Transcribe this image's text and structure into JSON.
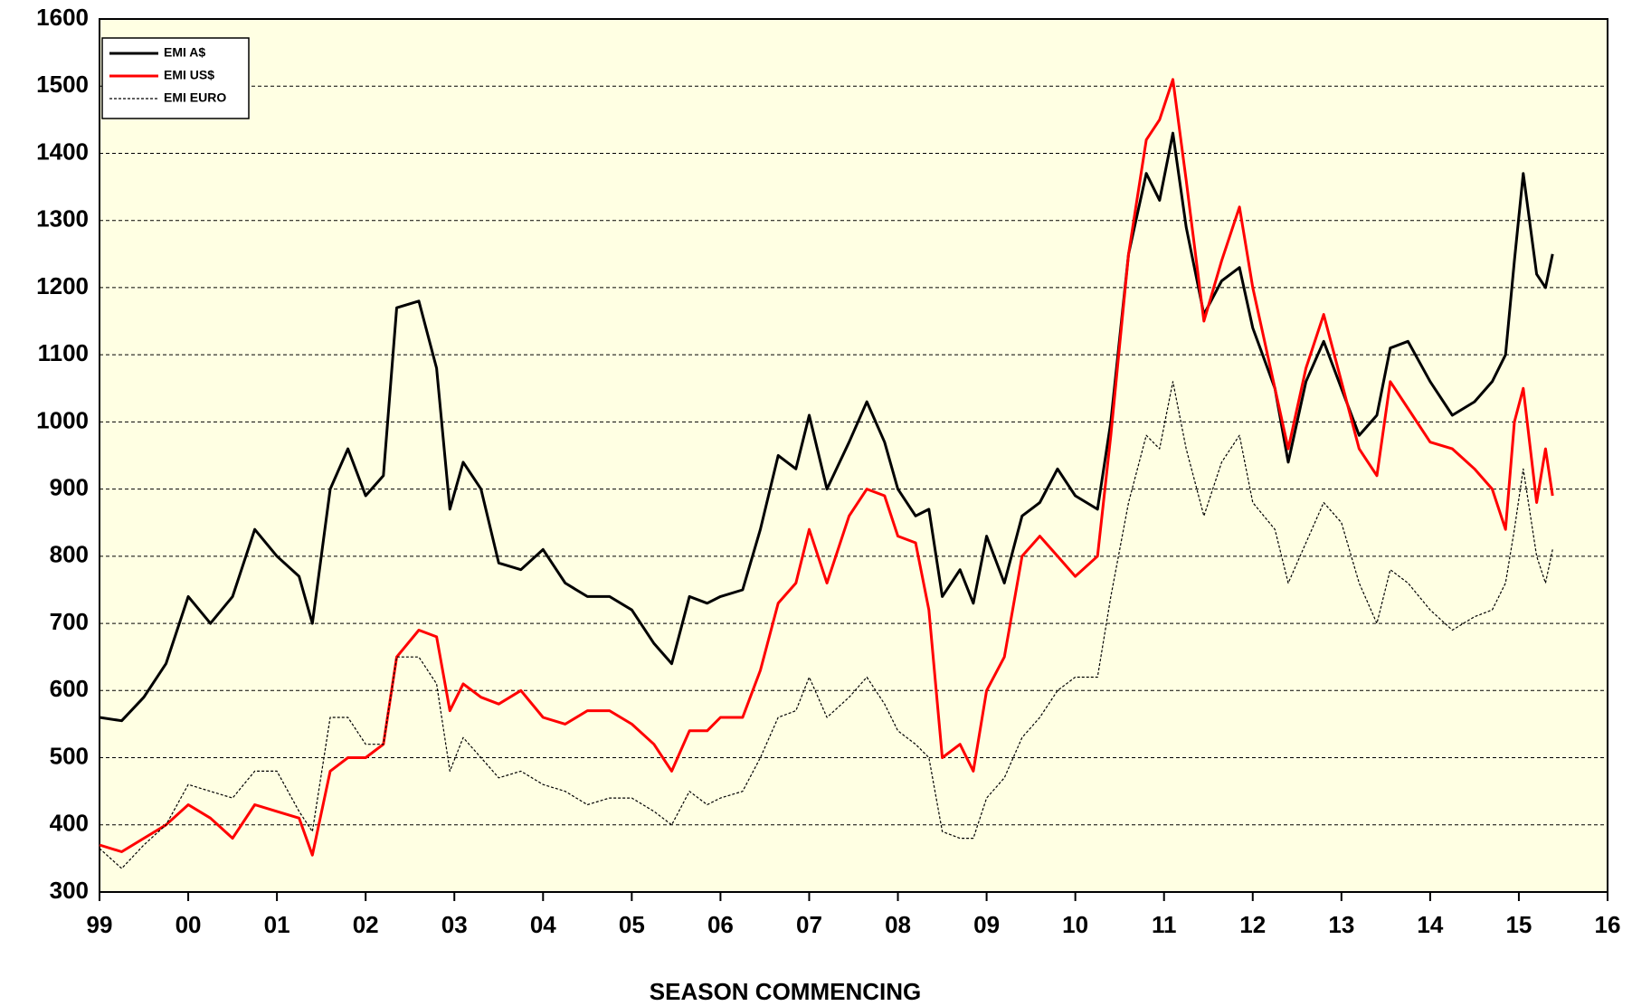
{
  "chart_data": {
    "type": "line",
    "x_label": "SEASON  COMMENCING",
    "x": [
      1999,
      1999.25,
      1999.5,
      1999.75,
      2000,
      2000.25,
      2000.5,
      2000.75,
      2001,
      2001.25,
      2001.4,
      2001.6,
      2001.8,
      2002,
      2002.2,
      2002.35,
      2002.6,
      2002.8,
      2002.95,
      2003.1,
      2003.3,
      2003.5,
      2003.75,
      2004,
      2004.25,
      2004.5,
      2004.75,
      2005,
      2005.25,
      2005.45,
      2005.65,
      2005.85,
      2006,
      2006.25,
      2006.45,
      2006.65,
      2006.85,
      2007,
      2007.2,
      2007.45,
      2007.65,
      2007.85,
      2008,
      2008.2,
      2008.35,
      2008.5,
      2008.7,
      2008.85,
      2009,
      2009.2,
      2009.4,
      2009.6,
      2009.8,
      2010,
      2010.25,
      2010.4,
      2010.6,
      2010.8,
      2010.95,
      2011.1,
      2011.25,
      2011.45,
      2011.65,
      2011.85,
      2012,
      2012.25,
      2012.4,
      2012.6,
      2012.8,
      2013,
      2013.2,
      2013.4,
      2013.55,
      2013.75,
      2014,
      2014.25,
      2014.5,
      2014.7,
      2014.85,
      2014.95,
      2015.05,
      2015.2,
      2015.3,
      2015.38
    ],
    "series": [
      {
        "name": "EMI A$",
        "color": "#000000",
        "width": 3,
        "dash": false,
        "values": [
          560,
          555,
          590,
          640,
          740,
          700,
          740,
          840,
          800,
          770,
          700,
          900,
          960,
          890,
          920,
          1170,
          1180,
          1080,
          870,
          940,
          900,
          790,
          780,
          810,
          760,
          740,
          740,
          720,
          670,
          640,
          740,
          730,
          740,
          750,
          840,
          950,
          930,
          1010,
          900,
          970,
          1030,
          970,
          900,
          860,
          870,
          740,
          780,
          730,
          830,
          760,
          860,
          880,
          930,
          890,
          870,
          1000,
          1250,
          1370,
          1330,
          1430,
          1290,
          1160,
          1210,
          1230,
          1140,
          1050,
          940,
          1060,
          1120,
          1050,
          980,
          1010,
          1110,
          1120,
          1060,
          1010,
          1030,
          1060,
          1100,
          1240,
          1370,
          1220,
          1200,
          1250
        ]
      },
      {
        "name": "EMI US$",
        "color": "#ff0000",
        "width": 3,
        "dash": false,
        "values": [
          370,
          360,
          380,
          400,
          430,
          410,
          380,
          430,
          420,
          410,
          355,
          480,
          500,
          500,
          520,
          650,
          690,
          680,
          570,
          610,
          590,
          580,
          600,
          560,
          550,
          570,
          570,
          550,
          520,
          480,
          540,
          540,
          560,
          560,
          630,
          730,
          760,
          840,
          760,
          860,
          900,
          890,
          830,
          820,
          720,
          500,
          520,
          480,
          600,
          650,
          800,
          830,
          800,
          770,
          800,
          980,
          1250,
          1420,
          1450,
          1510,
          1360,
          1150,
          1240,
          1320,
          1200,
          1050,
          960,
          1080,
          1160,
          1060,
          960,
          920,
          1060,
          1020,
          970,
          960,
          930,
          900,
          840,
          1000,
          1050,
          880,
          960,
          890
        ]
      },
      {
        "name": "EMI EURO",
        "color": "#000000",
        "width": 1.2,
        "dash": true,
        "values": [
          365,
          335,
          370,
          400,
          460,
          450,
          440,
          480,
          480,
          420,
          390,
          560,
          560,
          520,
          520,
          650,
          650,
          610,
          480,
          530,
          500,
          470,
          480,
          460,
          450,
          430,
          440,
          440,
          420,
          400,
          450,
          430,
          440,
          450,
          500,
          560,
          570,
          620,
          560,
          590,
          620,
          580,
          540,
          520,
          500,
          390,
          380,
          380,
          440,
          470,
          530,
          560,
          600,
          620,
          620,
          740,
          880,
          980,
          960,
          1060,
          960,
          860,
          940,
          980,
          880,
          840,
          760,
          820,
          880,
          850,
          760,
          700,
          780,
          760,
          720,
          690,
          710,
          720,
          760,
          840,
          930,
          800,
          760,
          810
        ]
      }
    ],
    "xlim": [
      1999,
      2016
    ],
    "ylim": [
      300,
      1600
    ],
    "xticks": [
      {
        "value": 1999,
        "label": "99"
      },
      {
        "value": 2000,
        "label": "00"
      },
      {
        "value": 2001,
        "label": "01"
      },
      {
        "value": 2002,
        "label": "02"
      },
      {
        "value": 2003,
        "label": "03"
      },
      {
        "value": 2004,
        "label": "04"
      },
      {
        "value": 2005,
        "label": "05"
      },
      {
        "value": 2006,
        "label": "06"
      },
      {
        "value": 2007,
        "label": "07"
      },
      {
        "value": 2008,
        "label": "08"
      },
      {
        "value": 2009,
        "label": "09"
      },
      {
        "value": 2010,
        "label": "10"
      },
      {
        "value": 2011,
        "label": "11"
      },
      {
        "value": 2012,
        "label": "12"
      },
      {
        "value": 2013,
        "label": "13"
      },
      {
        "value": 2014,
        "label": "14"
      },
      {
        "value": 2015,
        "label": "15"
      },
      {
        "value": 2016,
        "label": "16"
      }
    ],
    "yticks": [
      300,
      400,
      500,
      600,
      700,
      800,
      900,
      1000,
      1100,
      1200,
      1300,
      1400,
      1500,
      1600
    ],
    "grid": true,
    "legend": "top-left",
    "background": "#ffffe3"
  }
}
